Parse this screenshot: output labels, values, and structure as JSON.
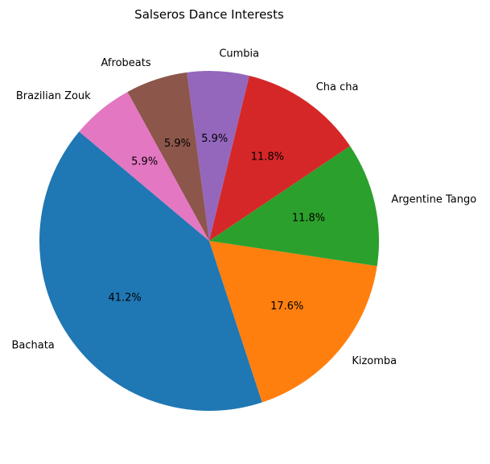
{
  "chart_data": {
    "type": "pie",
    "title": "Salseros Dance Interests",
    "start_angle_deg": 140,
    "direction": "counterclockwise",
    "slices": [
      {
        "label": "Bachata",
        "value": 41.2,
        "pct_label": "41.2%",
        "color": "#1f77b4"
      },
      {
        "label": "Kizomba",
        "value": 17.6,
        "pct_label": "17.6%",
        "color": "#ff7f0e"
      },
      {
        "label": "Argentine Tango",
        "value": 11.8,
        "pct_label": "11.8%",
        "color": "#2ca02c"
      },
      {
        "label": "Cha cha",
        "value": 11.8,
        "pct_label": "11.8%",
        "color": "#d62728"
      },
      {
        "label": "Cumbia",
        "value": 5.9,
        "pct_label": "5.9%",
        "color": "#9467bd"
      },
      {
        "label": "Afrobeats",
        "value": 5.9,
        "pct_label": "5.9%",
        "color": "#8c564b"
      },
      {
        "label": "Brazilian Zouk",
        "value": 5.9,
        "pct_label": "5.9%",
        "color": "#e377c2"
      }
    ]
  }
}
